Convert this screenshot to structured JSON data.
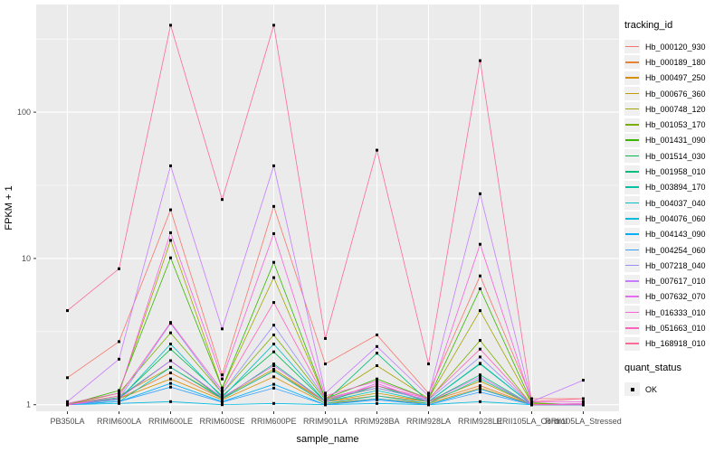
{
  "figure": {
    "background": "#FFFFFF",
    "panel_background": "#EBEBEB",
    "grid_color": "#FFFFFF",
    "axis_text_color": "#4D4D4D",
    "axis_title_color": "#000000",
    "tick_color": "#333333",
    "point_color": "#000000"
  },
  "chart_data": {
    "type": "line",
    "title": "",
    "xlabel": "sample_name",
    "ylabel": "FPKM + 1",
    "y_scale": "log10",
    "grid": true,
    "legend_position": "right",
    "ylim": [
      0.68,
      540
    ],
    "y_ticks": [
      1,
      10,
      100
    ],
    "y_tick_labels": [
      "1",
      "10",
      "100"
    ],
    "y_minor_ticks": [
      3.162,
      31.623,
      316.228
    ],
    "categories": [
      "PB350LA",
      "RRIM600LA",
      "RRIM600LE",
      "RRIM600SE",
      "RRIM600PE",
      "RRIM901LA",
      "RRIM928BA",
      "RRIM928LA",
      "RRIM928LE",
      "RRII105LA_Control",
      "RRII105LA_Stressed"
    ],
    "marker": {
      "shape": "square",
      "color": "#000000",
      "size": 3
    },
    "legend": {
      "tracking_id_title": "tracking_id",
      "quant_status_title": "quant_status",
      "quant_status_entries": [
        {
          "label": "OK",
          "marker": "black-square"
        }
      ]
    },
    "series": [
      {
        "name": "Hb_000120_930",
        "color": "#F8766D",
        "values": [
          1.53,
          2.7,
          21.5,
          1.6,
          22.7,
          1.9,
          3.0,
          1.2,
          7.6,
          1.1,
          1.1
        ]
      },
      {
        "name": "Hb_000189_180",
        "color": "#EA8331",
        "values": [
          1.0,
          1.1,
          1.65,
          1.1,
          1.7,
          1.05,
          1.15,
          1.05,
          1.35,
          1.0,
          1.0
        ]
      },
      {
        "name": "Hb_000497_250",
        "color": "#D89000",
        "values": [
          1.0,
          1.1,
          1.5,
          1.08,
          1.55,
          1.02,
          1.1,
          1.02,
          1.3,
          1.0,
          1.0
        ]
      },
      {
        "name": "Hb_000676_360",
        "color": "#C09B00",
        "values": [
          1.0,
          1.15,
          1.8,
          1.12,
          1.75,
          1.05,
          1.2,
          1.05,
          1.45,
          1.0,
          1.02
        ]
      },
      {
        "name": "Hb_000748_120",
        "color": "#A3A500",
        "values": [
          1.02,
          1.2,
          13.3,
          1.3,
          7.4,
          1.1,
          1.85,
          1.1,
          4.4,
          1.02,
          1.0
        ]
      },
      {
        "name": "Hb_001053_170",
        "color": "#7CAE00",
        "values": [
          1.0,
          1.2,
          3.1,
          1.2,
          3.0,
          1.08,
          1.3,
          1.08,
          2.75,
          1.0,
          1.0
        ]
      },
      {
        "name": "Hb_001431_090",
        "color": "#39B600",
        "values": [
          1.0,
          1.25,
          10.1,
          1.3,
          9.4,
          1.1,
          1.5,
          1.1,
          6.2,
          1.03,
          1.0
        ]
      },
      {
        "name": "Hb_001514_030",
        "color": "#00BB4E",
        "values": [
          1.0,
          1.1,
          2.4,
          1.15,
          2.3,
          1.05,
          1.35,
          1.05,
          1.9,
          1.0,
          1.0
        ]
      },
      {
        "name": "Hb_001958_010",
        "color": "#00BF7D",
        "values": [
          1.0,
          1.12,
          2.0,
          1.1,
          1.9,
          1.05,
          2.25,
          1.05,
          1.6,
          1.0,
          1.0
        ]
      },
      {
        "name": "Hb_003894_170",
        "color": "#00C1A3",
        "values": [
          1.0,
          1.05,
          1.8,
          1.1,
          1.7,
          1.02,
          1.15,
          1.02,
          1.5,
          1.0,
          1.0
        ]
      },
      {
        "name": "Hb_004037_040",
        "color": "#00BFC4",
        "values": [
          1.0,
          1.08,
          2.6,
          1.12,
          2.6,
          1.05,
          1.25,
          1.05,
          1.92,
          1.0,
          1.0
        ]
      },
      {
        "name": "Hb_004076_060",
        "color": "#00BAE0",
        "values": [
          1.0,
          1.02,
          1.05,
          1.0,
          1.02,
          1.0,
          1.02,
          1.0,
          1.05,
          1.0,
          1.0
        ]
      },
      {
        "name": "Hb_004143_090",
        "color": "#00B0F6",
        "values": [
          1.0,
          1.05,
          1.4,
          1.05,
          1.38,
          1.0,
          1.1,
          1.0,
          1.28,
          1.0,
          1.0
        ]
      },
      {
        "name": "Hb_004254_060",
        "color": "#35A2FF",
        "values": [
          1.0,
          1.05,
          1.32,
          1.04,
          1.3,
          1.0,
          1.08,
          1.0,
          1.22,
          1.0,
          1.0
        ]
      },
      {
        "name": "Hb_007218_040",
        "color": "#9590FF",
        "values": [
          1.0,
          1.1,
          3.6,
          1.2,
          3.5,
          1.1,
          1.3,
          1.08,
          2.12,
          1.0,
          1.0
        ]
      },
      {
        "name": "Hb_007617_010",
        "color": "#C77CFF",
        "values": [
          1.05,
          2.05,
          43.0,
          3.3,
          43.0,
          1.2,
          2.5,
          1.15,
          27.7,
          1.05,
          1.47
        ]
      },
      {
        "name": "Hb_007632_070",
        "color": "#E76BF3",
        "values": [
          1.0,
          1.1,
          2.0,
          1.12,
          1.85,
          1.05,
          1.4,
          1.05,
          1.55,
          1.0,
          1.02
        ]
      },
      {
        "name": "Hb_016333_010",
        "color": "#FA62DB",
        "values": [
          1.02,
          1.2,
          15.0,
          1.5,
          14.8,
          1.15,
          1.45,
          1.1,
          12.5,
          1.04,
          1.05
        ]
      },
      {
        "name": "Hb_051663_010",
        "color": "#FF62BC",
        "values": [
          1.0,
          1.15,
          3.65,
          1.25,
          5.0,
          1.1,
          1.35,
          1.1,
          2.4,
          1.0,
          1.0
        ]
      },
      {
        "name": "Hb_168918_010",
        "color": "#FF6A98",
        "values": [
          4.4,
          8.5,
          393.0,
          25.3,
          393.0,
          2.84,
          55.0,
          1.9,
          225.0,
          1.05,
          1.1
        ]
      }
    ]
  }
}
